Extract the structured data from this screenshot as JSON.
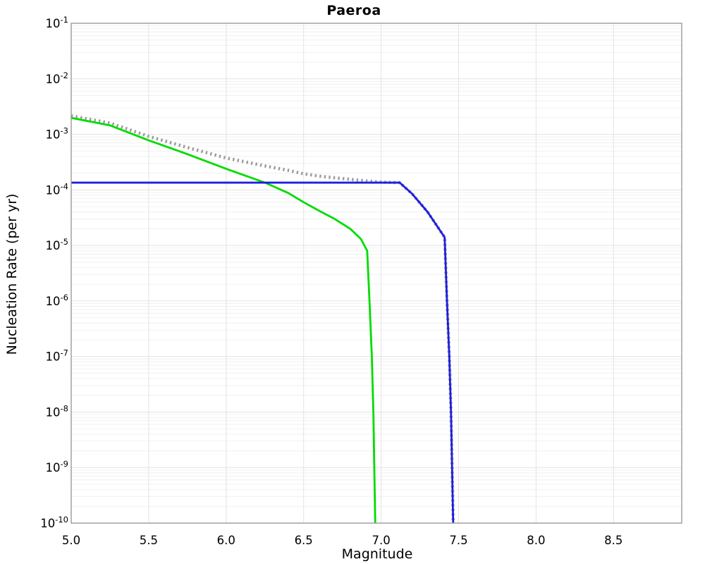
{
  "title": "Paeroa",
  "chart_data": {
    "type": "line",
    "title": "Paeroa",
    "xlabel": "Magnitude",
    "ylabel": "Nucleation Rate (per yr)",
    "xlim": [
      5.0,
      8.94
    ],
    "y_exponent_range": [
      -1,
      -10
    ],
    "x_ticks": [
      5.0,
      5.5,
      6.0,
      6.5,
      7.0,
      7.5,
      8.0,
      8.5
    ],
    "y_tick_exponents": [
      -1,
      -2,
      -3,
      -4,
      -5,
      -6,
      -7,
      -8,
      -9,
      -10
    ],
    "grid": {
      "vertical_major": true,
      "horizontal_major": true,
      "horizontal_log_minor": true,
      "legend": "none"
    },
    "series": [
      {
        "name": "total-rate-dotted-gray",
        "color": "#9C9C9C",
        "style": "dotted",
        "width": 4.6,
        "points": [
          [
            5.0,
            0.00215
          ],
          [
            5.25,
            0.0016
          ],
          [
            5.5,
            0.00092
          ],
          [
            5.75,
            0.00058
          ],
          [
            6.0,
            0.000375
          ],
          [
            6.25,
            0.00027
          ],
          [
            6.4,
            0.000225
          ],
          [
            6.5,
            0.000195
          ],
          [
            6.6,
            0.000177
          ],
          [
            6.7,
            0.000165
          ],
          [
            6.8,
            0.000155
          ],
          [
            6.9,
            0.000145
          ],
          [
            7.0,
            0.000138
          ],
          [
            7.12,
            0.000135
          ],
          [
            7.2,
            8.5e-05
          ],
          [
            7.3,
            4e-05
          ],
          [
            7.41,
            1.4e-05
          ],
          [
            7.425,
            1e-06
          ],
          [
            7.44,
            1e-07
          ],
          [
            7.451,
            1e-08
          ],
          [
            7.458,
            1e-09
          ],
          [
            7.465,
            1e-10
          ]
        ]
      },
      {
        "name": "tapered-gr-green",
        "color": "#00DC00",
        "style": "solid",
        "width": 2.8,
        "points": [
          [
            5.0,
            0.00198
          ],
          [
            5.25,
            0.00145
          ],
          [
            5.5,
            0.00078
          ],
          [
            5.75,
            0.00044
          ],
          [
            6.0,
            0.00024
          ],
          [
            6.25,
            0.000135
          ],
          [
            6.4,
            8.8e-05
          ],
          [
            6.5,
            6e-05
          ],
          [
            6.6,
            4.2e-05
          ],
          [
            6.7,
            3e-05
          ],
          [
            6.8,
            2e-05
          ],
          [
            6.87,
            1.3e-05
          ],
          [
            6.91,
            8e-06
          ],
          [
            6.925,
            1e-06
          ],
          [
            6.94,
            1e-07
          ],
          [
            6.95,
            1e-08
          ],
          [
            6.956,
            1e-09
          ],
          [
            6.962,
            1e-10
          ]
        ]
      },
      {
        "name": "characteristic-blue",
        "color": "#1E1EE0",
        "style": "solid",
        "width": 2.8,
        "points": [
          [
            5.0,
            0.000135
          ],
          [
            7.12,
            0.000135
          ],
          [
            7.2,
            8.5e-05
          ],
          [
            7.3,
            4e-05
          ],
          [
            7.41,
            1.4e-05
          ],
          [
            7.425,
            1e-06
          ],
          [
            7.44,
            1e-07
          ],
          [
            7.451,
            1e-08
          ],
          [
            7.458,
            1e-09
          ],
          [
            7.465,
            1e-10
          ]
        ]
      }
    ],
    "colors": {
      "grid_minor": "#F0F0F0",
      "grid_major": "#E3E3E3",
      "axis_border": "#999999",
      "tick_text": "#000000"
    }
  }
}
